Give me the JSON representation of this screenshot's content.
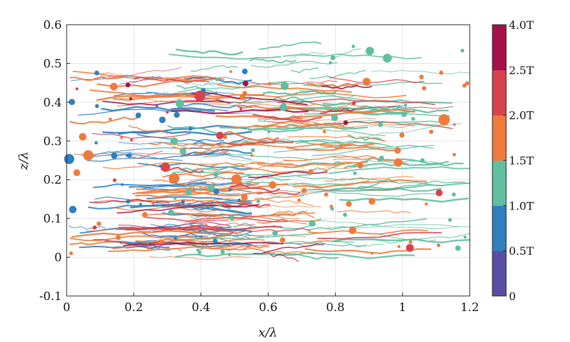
{
  "chart_data": {
    "type": "scatter",
    "title": "",
    "xlabel": "x/λ",
    "ylabel": "z/λ",
    "xlim": [
      0,
      1.2
    ],
    "ylim": [
      -0.1,
      0.6
    ],
    "grid": true,
    "x_ticks": [
      "0",
      "0.2",
      "0.4",
      "0.6",
      "0.8",
      "1",
      "1.2"
    ],
    "y_ticks": [
      "-0.1",
      "0",
      "0.1",
      "0.2",
      "0.3",
      "0.4",
      "0.5",
      "0.6"
    ],
    "colorbar": {
      "tick_labels": [
        "0",
        "0.5T",
        "1.0T",
        "1.5T",
        "2.0T",
        "2.5T",
        "4.0T"
      ],
      "bins": [
        {
          "range": "0–0.5T",
          "color": "#5a4ea3"
        },
        {
          "range": "0.5T–1.0T",
          "color": "#2f7fbf"
        },
        {
          "range": "1.0T–1.5T",
          "color": "#5fbfa0"
        },
        {
          "range": "1.5T–2.0T",
          "color": "#f07a3c"
        },
        {
          "range": "2.0T–2.5T",
          "color": "#d9424a"
        },
        {
          "range": "2.5T–4.0T",
          "color": "#a6104a"
        }
      ]
    },
    "series": [
      {
        "color_bin": "0.5T–1.0T",
        "color": "#2f7fbf",
        "x_range": [
          0,
          0.55
        ],
        "z_range": [
          -0.02,
          0.5
        ]
      },
      {
        "color_bin": "1.0T–1.5T",
        "color": "#5fbfa0",
        "x_range": [
          0.3,
          1.2
        ],
        "z_range": [
          -0.02,
          0.58
        ]
      },
      {
        "color_bin": "1.5T–2.0T",
        "color": "#f07a3c",
        "x_range": [
          0,
          1.2
        ],
        "z_range": [
          -0.02,
          0.5
        ]
      },
      {
        "color_bin": "2.0T–2.5T",
        "color": "#d9424a",
        "x_range": [
          0,
          1.15
        ],
        "z_range": [
          0,
          0.5
        ]
      },
      {
        "color_bin": "2.5T–4.0T",
        "color": "#a6104a",
        "x_range": [
          0.05,
          1.15
        ],
        "z_range": [
          -0.05,
          0.5
        ]
      }
    ]
  }
}
